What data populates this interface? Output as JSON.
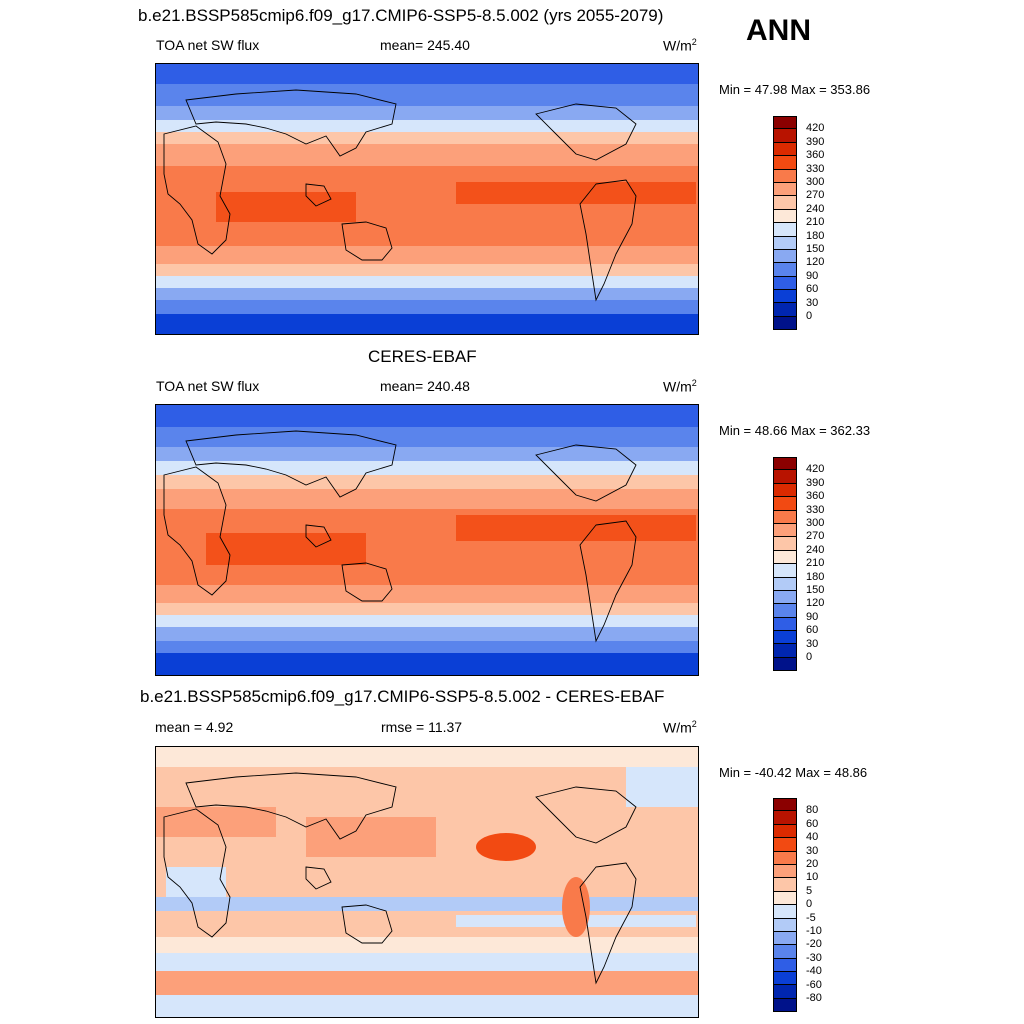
{
  "header": {
    "top_title": "b.e21.BSSP585cmip6.f09_g17.CMIP6-SSP5-8.5.002 (yrs 2055-2079)",
    "season": "ANN"
  },
  "panels": [
    {
      "title": "",
      "left": "TOA net SW flux",
      "center": "mean= 245.40",
      "unit": "W/m",
      "unit_sup": "2",
      "minmax": "Min =  47.98 Max = 353.86",
      "colorbar": {
        "labels": [
          "420",
          "390",
          "360",
          "330",
          "300",
          "270",
          "240",
          "210",
          "180",
          "150",
          "120",
          "90",
          "60",
          "30",
          "0"
        ],
        "colors": [
          "#8b0000",
          "#b81300",
          "#db2a00",
          "#f24a12",
          "#f97a4a",
          "#fca07a",
          "#fdc6a8",
          "#fde8d8",
          "#d6e6fb",
          "#b2cbf7",
          "#89a9f2",
          "#5a84ec",
          "#2f5ee6",
          "#0a3fd6",
          "#0026b0",
          "#00128a"
        ]
      }
    },
    {
      "title": "CERES-EBAF",
      "left": "TOA net SW flux",
      "center": "mean= 240.48",
      "unit": "W/m",
      "unit_sup": "2",
      "minmax": "Min =  48.66 Max = 362.33",
      "colorbar": {
        "labels": [
          "420",
          "390",
          "360",
          "330",
          "300",
          "270",
          "240",
          "210",
          "180",
          "150",
          "120",
          "90",
          "60",
          "30",
          "0"
        ],
        "colors": [
          "#8b0000",
          "#b81300",
          "#db2a00",
          "#f24a12",
          "#f97a4a",
          "#fca07a",
          "#fdc6a8",
          "#fde8d8",
          "#d6e6fb",
          "#b2cbf7",
          "#89a9f2",
          "#5a84ec",
          "#2f5ee6",
          "#0a3fd6",
          "#0026b0",
          "#00128a"
        ]
      }
    },
    {
      "title": "b.e21.BSSP585cmip6.f09_g17.CMIP6-SSP5-8.5.002 - CERES-EBAF",
      "left": "mean =   4.92",
      "center": "rmse =  11.37",
      "unit": "W/m",
      "unit_sup": "2",
      "minmax": "Min = -40.42 Max =  48.86",
      "colorbar": {
        "labels": [
          "80",
          "60",
          "40",
          "30",
          "20",
          "10",
          "5",
          "0",
          "-5",
          "-10",
          "-20",
          "-30",
          "-40",
          "-60",
          "-80"
        ],
        "colors": [
          "#8b0000",
          "#b81300",
          "#db2a00",
          "#f24a12",
          "#f97a4a",
          "#fca07a",
          "#fdc6a8",
          "#fde8d8",
          "#d6e6fb",
          "#b2cbf7",
          "#89a9f2",
          "#5a84ec",
          "#2f5ee6",
          "#0a3fd6",
          "#0026b0",
          "#00128a"
        ]
      }
    }
  ]
}
